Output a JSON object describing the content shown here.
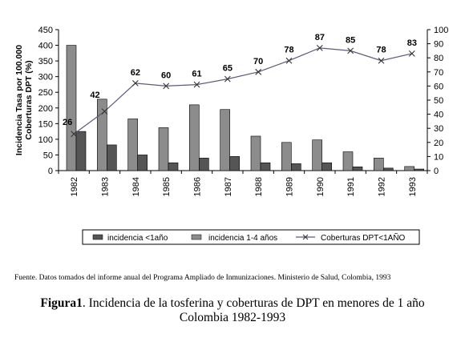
{
  "chart_data": {
    "type": "bar",
    "categories": [
      "1982",
      "1983",
      "1984",
      "1985",
      "1986",
      "1987",
      "1988",
      "1989",
      "1990",
      "1991",
      "1992",
      "1993"
    ],
    "series": [
      {
        "name": "incidencia 1-4 años",
        "kind": "bar",
        "axis": "left",
        "color": "#8c8c8c",
        "values": [
          400,
          228,
          165,
          137,
          210,
          195,
          110,
          90,
          98,
          60,
          40,
          13
        ]
      },
      {
        "name": "incidencia <1año",
        "kind": "bar",
        "axis": "left",
        "color": "#555555",
        "values": [
          125,
          82,
          50,
          25,
          40,
          45,
          25,
          22,
          25,
          12,
          8,
          5
        ]
      },
      {
        "name": "Coberturas DPT<1AÑO",
        "kind": "line",
        "axis": "right",
        "color": "#5b5b7a",
        "values": [
          26,
          42,
          62,
          60,
          61,
          65,
          70,
          78,
          87,
          85,
          78,
          83
        ]
      }
    ],
    "data_labels": [
      "26",
      "42",
      "62",
      "60",
      "61",
      "65",
      "70",
      "78",
      "87",
      "85",
      "78",
      "83"
    ],
    "ylabel": "Incidencia Tasa por 100.000",
    "ylabel2": "Coberturas DPT (%)",
    "ylim_left": [
      0,
      450
    ],
    "yticks_left": [
      "0",
      "50",
      "100",
      "150",
      "200",
      "250",
      "300",
      "350",
      "400",
      "450"
    ],
    "ylim_right": [
      0,
      100
    ],
    "yticks_right": [
      "0",
      "10",
      "20",
      "30",
      "40",
      "50",
      "60",
      "70",
      "80",
      "90",
      "100"
    ],
    "grid": false,
    "legend_position": "bottom",
    "legend": [
      {
        "label": "incidencia <1año",
        "kind": "bar",
        "color": "#555555"
      },
      {
        "label": "incidencia 1-4 años",
        "kind": "bar",
        "color": "#8c8c8c"
      },
      {
        "label": "Coberturas DPT<1AÑO",
        "kind": "line",
        "color": "#5b5b7a"
      }
    ]
  },
  "source_note": "Fuente. Datos tomados del informe anual del Programa Ampliado de Inmunizaciones. Ministerio de Salud, Colombia, 1993",
  "caption": {
    "label": "Figura1",
    "text": ". Incidencia de la tosferina y coberturas de DPT en menores de 1 año",
    "line2": "Colombia 1982-1993"
  }
}
